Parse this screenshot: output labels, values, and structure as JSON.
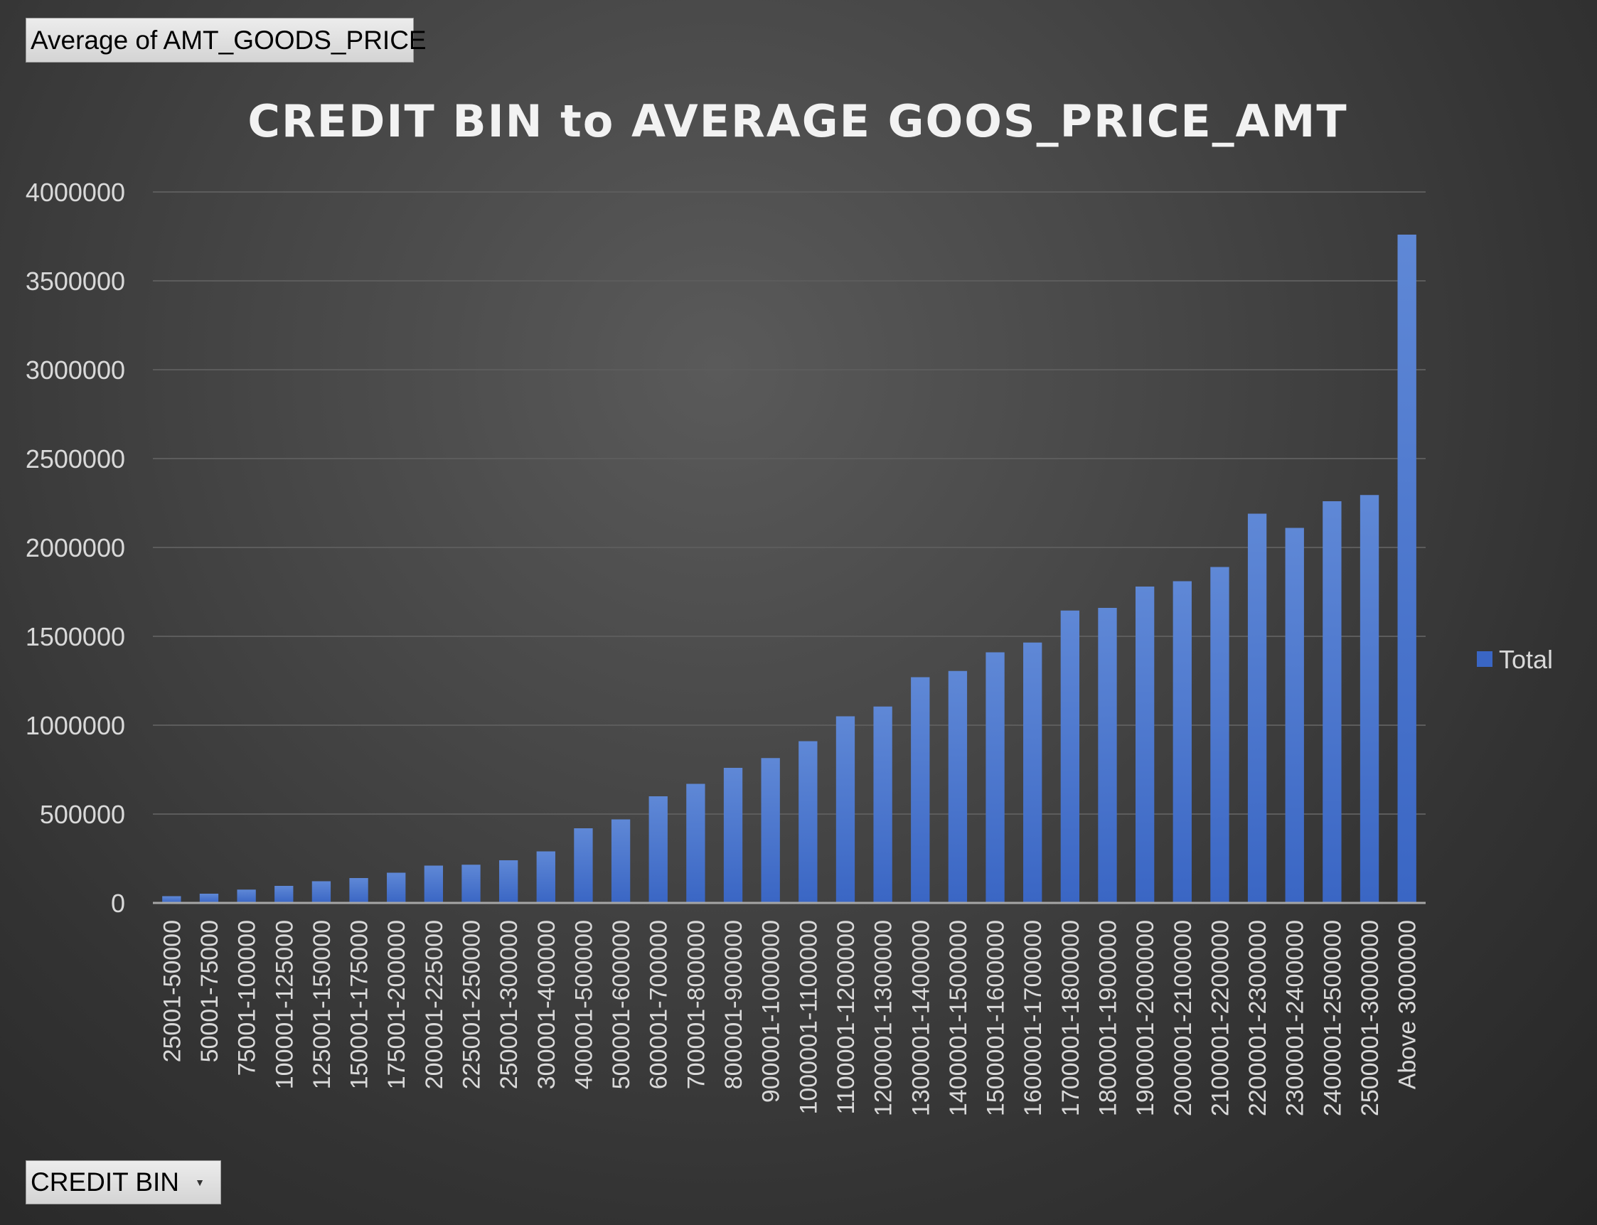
{
  "pivot": {
    "value_field_label": "Average  of AMT_GOODS_PRICE",
    "axis_field_label": "CREDIT BIN",
    "axis_field_icon": "dropdown-arrow-icon"
  },
  "colors": {
    "bar_top": "#5f88d6",
    "bar_bottom": "#3a66c4",
    "text": "#d9d9d9",
    "title": "#f2f2f2",
    "gridline": "#5c5c5c",
    "axis_line": "#a6a6a6"
  },
  "chart_data": {
    "type": "bar",
    "title": "CREDIT BIN to AVERAGE GOOS_PRICE_AMT",
    "xlabel": "",
    "ylabel": "",
    "ylim": [
      0,
      4000000
    ],
    "yticks": [
      {
        "value": 0,
        "label": "0"
      },
      {
        "value": 500000,
        "label": "500000"
      },
      {
        "value": 1000000,
        "label": "1000000"
      },
      {
        "value": 1500000,
        "label": "1500000"
      },
      {
        "value": 2000000,
        "label": "2000000"
      },
      {
        "value": 2500000,
        "label": "2500000"
      },
      {
        "value": 3000000,
        "label": "3000000"
      },
      {
        "value": 3500000,
        "label": "3500000"
      },
      {
        "value": 4000000,
        "label": "4000000"
      }
    ],
    "grid": true,
    "legend_position": "right",
    "categories": [
      "25001-50000",
      "50001-75000",
      "75001-100000",
      "100001-125000",
      "125001-150000",
      "150001-175000",
      "175001-200000",
      "200001-225000",
      "225001-250000",
      "250001-300000",
      "300001-400000",
      "400001-500000",
      "500001-600000",
      "600001-700000",
      "700001-800000",
      "800001-900000",
      "900001-1000000",
      "1000001-1100000",
      "1100001-1200000",
      "1200001-1300000",
      "1300001-1400000",
      "1400001-1500000",
      "1500001-1600000",
      "1600001-1700000",
      "1700001-1800000",
      "1800001-1900000",
      "1900001-2000000",
      "2000001-2100000",
      "2100001-2200000",
      "2200001-2300000",
      "2300001-2400000",
      "2400001-2500000",
      "2500001-3000000",
      "Above 3000000"
    ],
    "series": [
      {
        "name": "Total",
        "values": [
          38000,
          52000,
          75000,
          96000,
          122000,
          140000,
          170000,
          210000,
          215000,
          240000,
          290000,
          420000,
          470000,
          600000,
          670000,
          760000,
          815000,
          910000,
          1050000,
          1105000,
          1270000,
          1305000,
          1410000,
          1465000,
          1645000,
          1660000,
          1780000,
          1810000,
          1890000,
          2190000,
          2110000,
          2260000,
          2295000,
          3760000
        ]
      }
    ]
  }
}
